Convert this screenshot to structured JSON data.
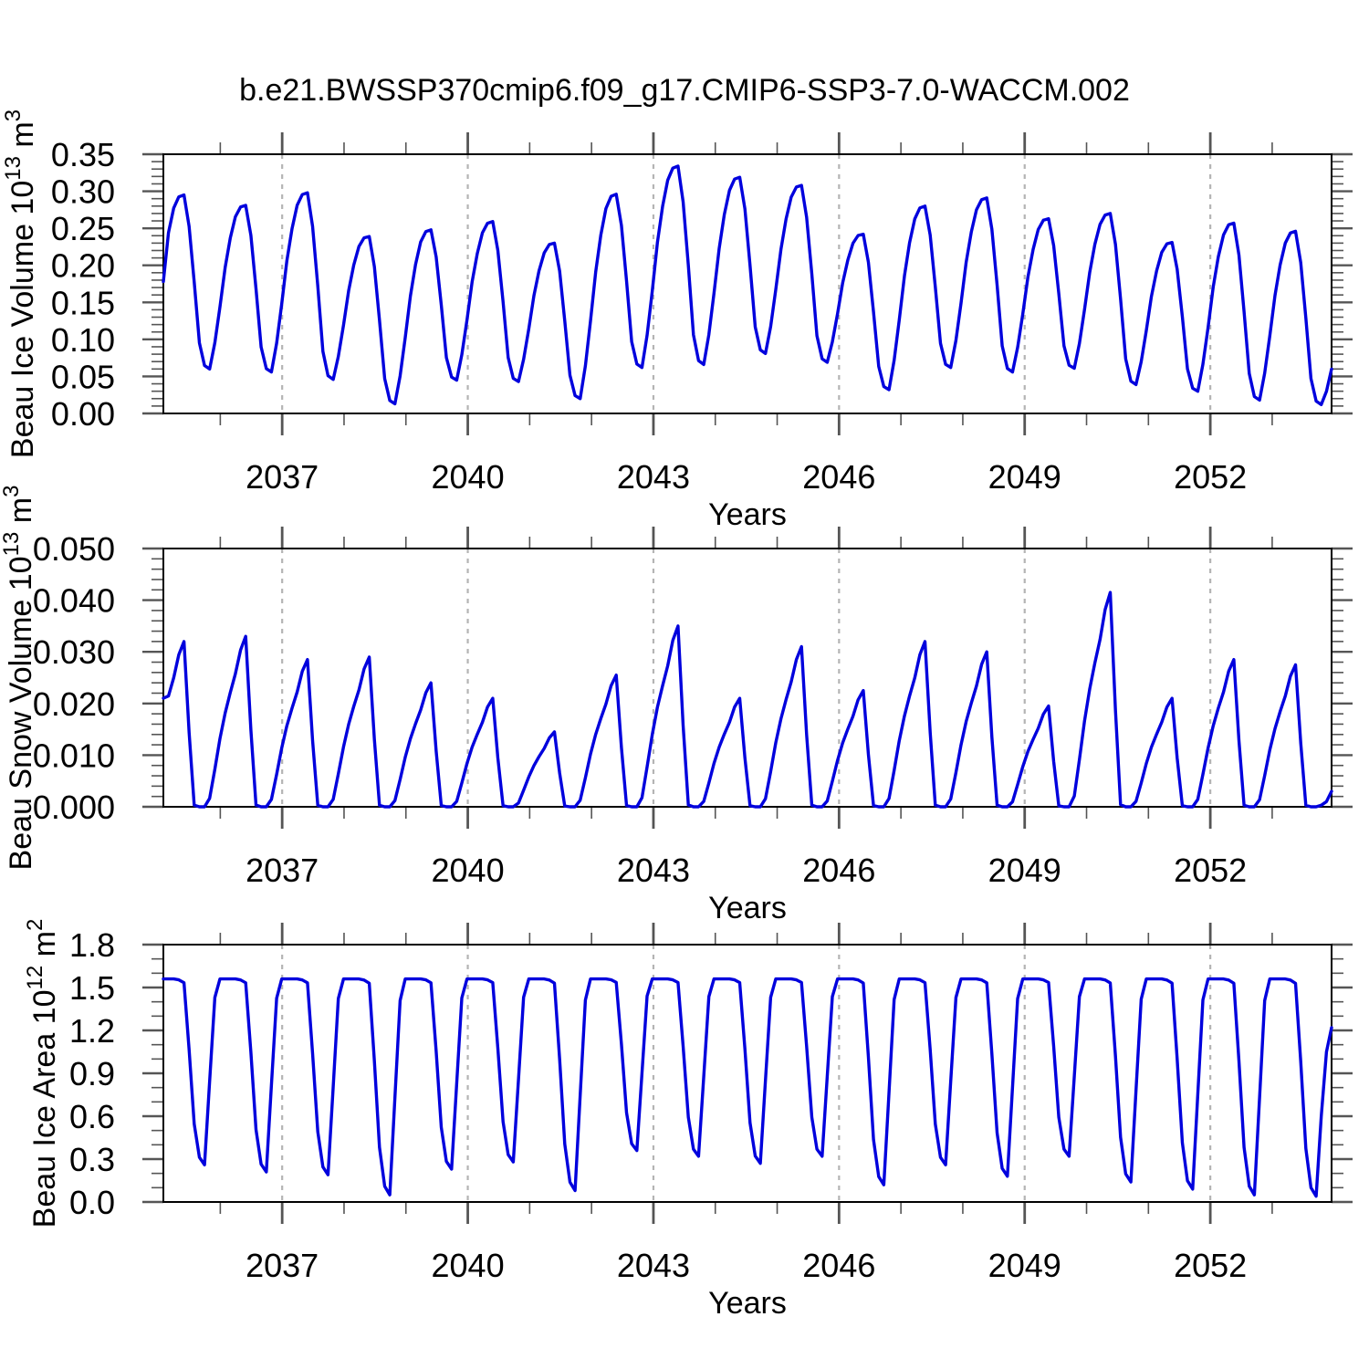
{
  "title": "b.e21.BWSSP370cmip6.f09_g17.CMIP6-SSP3-7.0-WACCM.002",
  "colors": {
    "line": "#0000dd",
    "grid": "#b4b4b4",
    "box": "#000000",
    "tick": "#555555",
    "text": "#000000",
    "background": "#ffffff"
  },
  "x_axis": {
    "label": "Years",
    "domain": [
      2035.08,
      2053.96
    ],
    "major_ticks": [
      2037,
      2040,
      2043,
      2046,
      2049,
      2052
    ],
    "tick_labels": [
      "2037",
      "2040",
      "2043",
      "2046",
      "2049",
      "2052"
    ],
    "minor_tick_step_years": 1,
    "grid": "dashed-vertical-at-major-ticks"
  },
  "chart_data": [
    {
      "type": "line",
      "name": "Beau Ice Volume",
      "ylabel": "Beau Ice Volume 10^13 m^3",
      "ylabel_parts": [
        {
          "t": "Beau Ice Volume 10"
        },
        {
          "t": "13",
          "sup": true
        },
        {
          "t": " m"
        },
        {
          "t": "3",
          "sup": true
        }
      ],
      "xlabel": "Years",
      "ylim": [
        0,
        0.35
      ],
      "y_major_ticks": [
        0.0,
        0.05,
        0.1,
        0.15,
        0.2,
        0.25,
        0.3,
        0.35
      ],
      "y_tick_labels": [
        "0.00",
        "0.05",
        "0.10",
        "0.15",
        "0.20",
        "0.25",
        "0.30",
        "0.35"
      ],
      "y_minor_step": 0.01,
      "pattern": "annual_cycle_monthly",
      "years": [
        2035,
        2036,
        2037,
        2038,
        2039,
        2040,
        2041,
        2042,
        2043,
        2044,
        2045,
        2046,
        2047,
        2048,
        2049,
        2050,
        2051,
        2052,
        2053
      ],
      "may_peaks": [
        0.295,
        0.281,
        0.298,
        0.239,
        0.248,
        0.259,
        0.23,
        0.296,
        0.334,
        0.319,
        0.308,
        0.242,
        0.28,
        0.291,
        0.263,
        0.27,
        0.231,
        0.257,
        0.246
      ],
      "oct_troughs": [
        0.06,
        0.056,
        0.046,
        0.013,
        0.045,
        0.043,
        0.02,
        0.062,
        0.066,
        0.081,
        0.069,
        0.032,
        0.062,
        0.056,
        0.061,
        0.039,
        0.03,
        0.018,
        0.012
      ],
      "prev_trough": 0.04,
      "first_value": 0.178,
      "monthly_weights": [
        0.62,
        0.8,
        0.93,
        0.99,
        1.0,
        0.82,
        0.5,
        0.15,
        0.02,
        0.0,
        0.16,
        0.38
      ],
      "final_nov_dec": [
        0.03,
        0.06
      ]
    },
    {
      "type": "line",
      "name": "Beau Snow Volume",
      "ylabel": "Beau Snow Volume 10^13 m^3",
      "ylabel_parts": [
        {
          "t": "Beau Snow Volume 10"
        },
        {
          "t": "13",
          "sup": true
        },
        {
          "t": " m"
        },
        {
          "t": "3",
          "sup": true
        }
      ],
      "xlabel": "Years",
      "ylim": [
        0,
        0.05
      ],
      "y_major_ticks": [
        0.0,
        0.01,
        0.02,
        0.03,
        0.04,
        0.05
      ],
      "y_tick_labels": [
        "0.000",
        "0.010",
        "0.020",
        "0.030",
        "0.040",
        "0.050"
      ],
      "y_minor_step": 0.002,
      "pattern": "annual_cycle_monthly",
      "years": [
        2035,
        2036,
        2037,
        2038,
        2039,
        2040,
        2041,
        2042,
        2043,
        2044,
        2045,
        2046,
        2047,
        2048,
        2049,
        2050,
        2051,
        2052,
        2053
      ],
      "may_peaks": [
        0.032,
        0.033,
        0.0285,
        0.029,
        0.024,
        0.021,
        0.0145,
        0.0255,
        0.035,
        0.021,
        0.031,
        0.0225,
        0.032,
        0.03,
        0.0195,
        0.0415,
        0.021,
        0.0285,
        0.0275
      ],
      "summer_min": 0.0,
      "first_value": 0.021,
      "monthly_weights": [
        0.55,
        0.67,
        0.78,
        0.92,
        1.0,
        0.45,
        0.01,
        0.0,
        0.0,
        0.05,
        0.22,
        0.4
      ],
      "final_oct_nov_dec": [
        0.0003,
        0.001,
        0.003
      ]
    },
    {
      "type": "line",
      "name": "Beau Ice Area",
      "ylabel": "Beau Ice Area 10^12 m^2",
      "ylabel_parts": [
        {
          "t": "Beau Ice Area 10"
        },
        {
          "t": "12",
          "sup": true
        },
        {
          "t": " m"
        },
        {
          "t": "2",
          "sup": true
        }
      ],
      "xlabel": "Years",
      "ylim": [
        0,
        1.8
      ],
      "y_major_ticks": [
        0.0,
        0.3,
        0.6,
        0.9,
        1.2,
        1.5,
        1.8
      ],
      "y_tick_labels": [
        "0.0",
        "0.3",
        "0.6",
        "0.9",
        "1.2",
        "1.5",
        "1.8"
      ],
      "y_minor_step": 0.1,
      "pattern": "annual_cycle_monthly",
      "years": [
        2035,
        2036,
        2037,
        2038,
        2039,
        2040,
        2041,
        2042,
        2043,
        2044,
        2045,
        2046,
        2047,
        2048,
        2049,
        2050,
        2051,
        2052,
        2053
      ],
      "winter_plateau": 1.56,
      "sep_minima": [
        0.26,
        0.21,
        0.19,
        0.05,
        0.23,
        0.28,
        0.08,
        0.36,
        0.32,
        0.27,
        0.32,
        0.12,
        0.26,
        0.18,
        0.32,
        0.14,
        0.09,
        0.05,
        0.04
      ],
      "drop_weights": [
        0.0,
        0.0,
        0.0,
        0.005,
        0.02,
        0.38,
        0.78,
        0.96,
        1.0,
        0.55,
        0.1,
        0.0
      ],
      "final_oct_nov_dec": [
        0.6,
        1.05,
        1.22
      ]
    }
  ]
}
